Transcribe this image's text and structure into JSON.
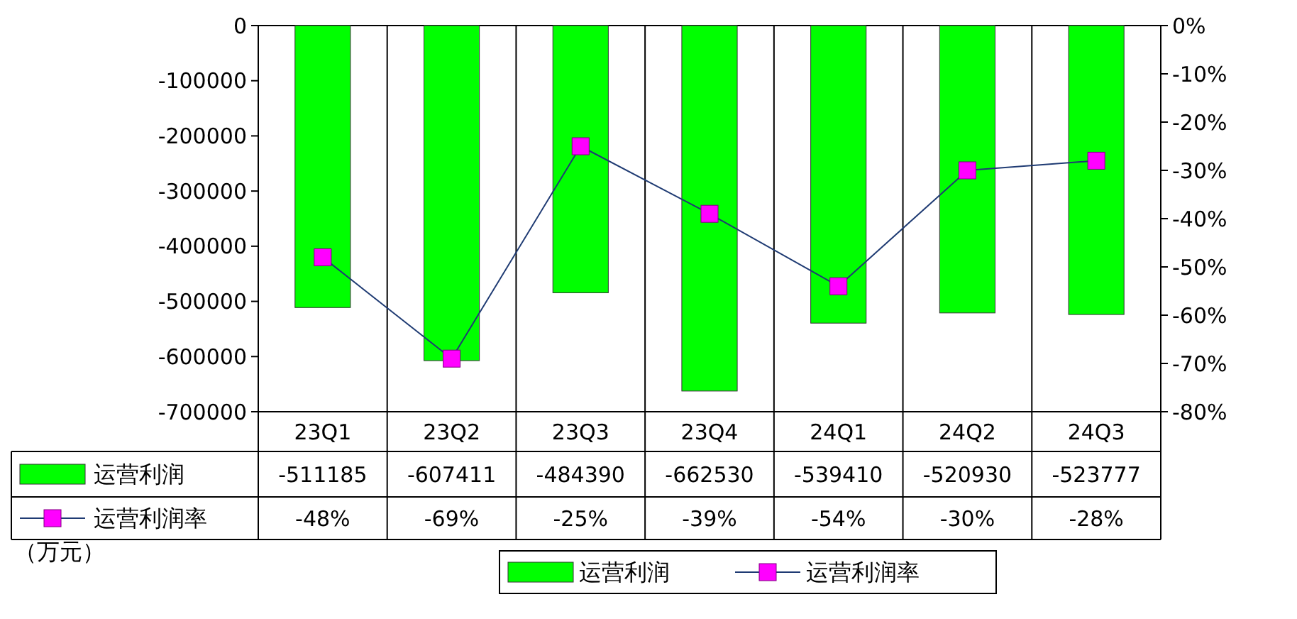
{
  "chart_data": {
    "type": "bar",
    "categories": [
      "23Q1",
      "23Q2",
      "23Q3",
      "23Q4",
      "24Q1",
      "24Q2",
      "24Q3"
    ],
    "series": [
      {
        "name": "运营利润",
        "color": "#00ff00",
        "values": [
          -511185,
          -607411,
          -484390,
          -662530,
          -539410,
          -520930,
          -523777
        ],
        "value_labels": [
          "-511185",
          "-607411",
          "-484390",
          "-662530",
          "-539410",
          "-520930",
          "-523777"
        ]
      },
      {
        "name": "运营利润率",
        "type": "line",
        "axis": "y2",
        "color": "#1f3b73",
        "marker": "square",
        "values": [
          -48,
          -69,
          -25,
          -39,
          -54,
          -30,
          -28
        ],
        "value_labels": [
          "-48%",
          "-69%",
          "-25%",
          "-39%",
          "-54%",
          "-30%",
          "-28%"
        ]
      }
    ],
    "ylim": [
      -700000,
      0
    ],
    "yticks": [
      0,
      -100000,
      -200000,
      -300000,
      -400000,
      -500000,
      -600000,
      -700000
    ],
    "y2lim": [
      -80,
      0
    ],
    "y2ticks": [
      {
        "value": 0,
        "label": "0%"
      },
      {
        "value": -10,
        "label": "-10%"
      },
      {
        "value": -20,
        "label": "-20%"
      },
      {
        "value": -30,
        "label": "-30%"
      },
      {
        "value": -40,
        "label": "-40%"
      },
      {
        "value": -50,
        "label": "-50%"
      },
      {
        "value": -60,
        "label": "-60%"
      },
      {
        "value": -70,
        "label": "-70%"
      },
      {
        "value": -80,
        "label": "-80%"
      }
    ],
    "grid": "x",
    "legend": "bottom",
    "annotations": [
      "（万元）"
    ]
  }
}
